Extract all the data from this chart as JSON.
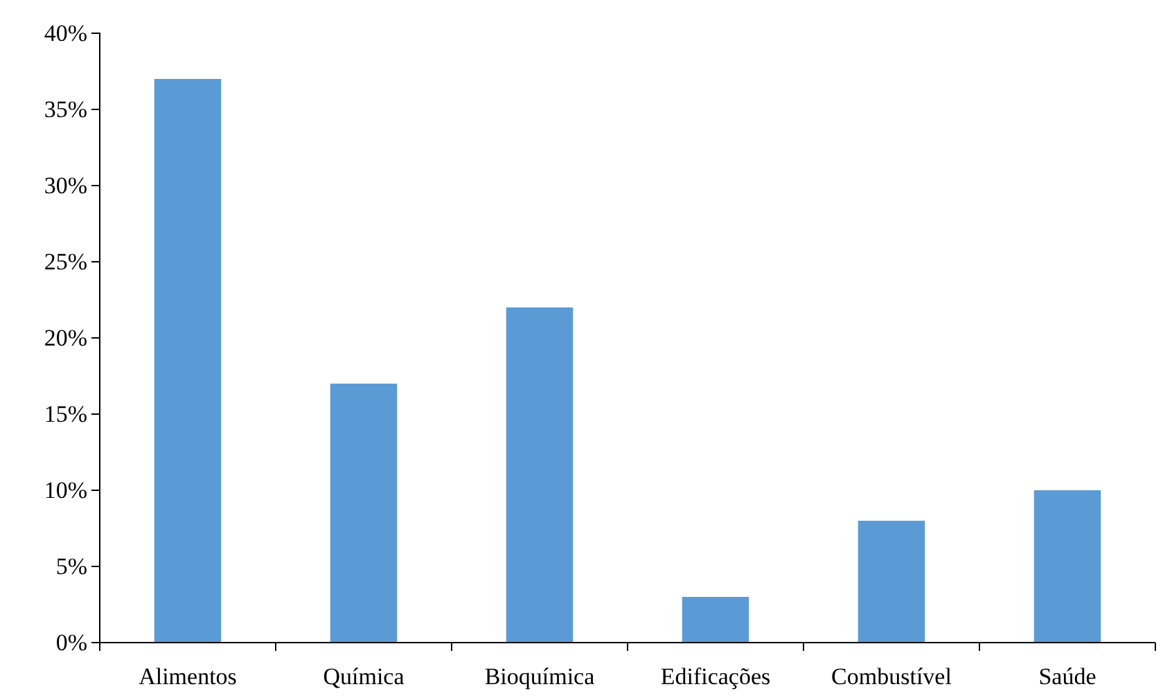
{
  "chart_data": {
    "type": "bar",
    "categories": [
      "Alimentos",
      "Química",
      "Bioquímica",
      "Edificações",
      "Combustível",
      "Saúde"
    ],
    "values": [
      37,
      17,
      22,
      3,
      8,
      10
    ],
    "color": "#5b9bd5",
    "ylim": [
      0,
      40
    ],
    "yticks": [
      {
        "value": 0,
        "label": "0%"
      },
      {
        "value": 5,
        "label": "5%"
      },
      {
        "value": 10,
        "label": "10%"
      },
      {
        "value": 15,
        "label": "15%"
      },
      {
        "value": 20,
        "label": "20%"
      },
      {
        "value": 25,
        "label": "25%"
      },
      {
        "value": 30,
        "label": "30%"
      },
      {
        "value": 35,
        "label": "35%"
      },
      {
        "value": 40,
        "label": "40%"
      }
    ],
    "grid": false
  }
}
